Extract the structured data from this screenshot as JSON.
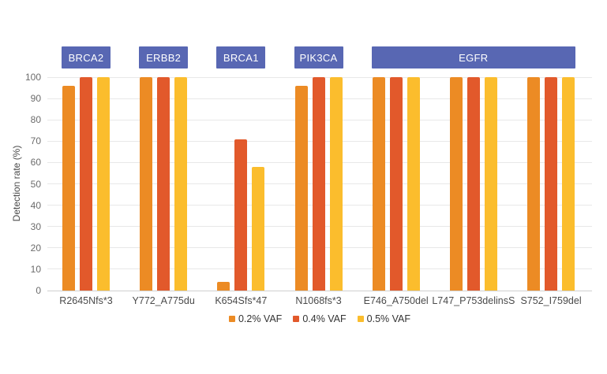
{
  "chart_data": {
    "type": "bar",
    "title": "",
    "xlabel": "",
    "ylabel": "Detection rate (%)",
    "ylim": [
      0,
      100
    ],
    "yticks": [
      0,
      10,
      20,
      30,
      40,
      50,
      60,
      70,
      80,
      90,
      100
    ],
    "grid": true,
    "legend_position": "bottom",
    "categories": [
      "R2645Nfs*3",
      "Y772_A775du",
      "K654Sfs*47",
      "N1068fs*3",
      "E746_A750del",
      "L747_P753delinsS",
      "S752_I759del"
    ],
    "gene_groups": [
      {
        "label": "BRCA2",
        "start": 0,
        "end": 0
      },
      {
        "label": "ERBB2",
        "start": 1,
        "end": 1
      },
      {
        "label": "BRCA1",
        "start": 2,
        "end": 2
      },
      {
        "label": "PIK3CA",
        "start": 3,
        "end": 3
      },
      {
        "label": "EGFR",
        "start": 4,
        "end": 6
      }
    ],
    "series": [
      {
        "name": "0.2% VAF",
        "color": "#EC8B24",
        "values": [
          96,
          100,
          4,
          96,
          100,
          100,
          100
        ]
      },
      {
        "name": "0.4% VAF",
        "color": "#E2592B",
        "values": [
          100,
          100,
          71,
          100,
          100,
          100,
          100
        ]
      },
      {
        "name": "0.5% VAF",
        "color": "#FBBD2D",
        "values": [
          100,
          100,
          58,
          100,
          100,
          100,
          100
        ]
      }
    ],
    "colors": {
      "gene_box": "#5867B3",
      "gene_box_text": "#FFFFFF",
      "gridline": "#E8E8E8",
      "baseline": "#CFCFCF",
      "tick_text": "#6B6B6B",
      "category_text": "#4A4A4A",
      "axis_title_text": "#4A4A4A",
      "legend_text": "#333333",
      "background": "#FFFFFF"
    }
  }
}
